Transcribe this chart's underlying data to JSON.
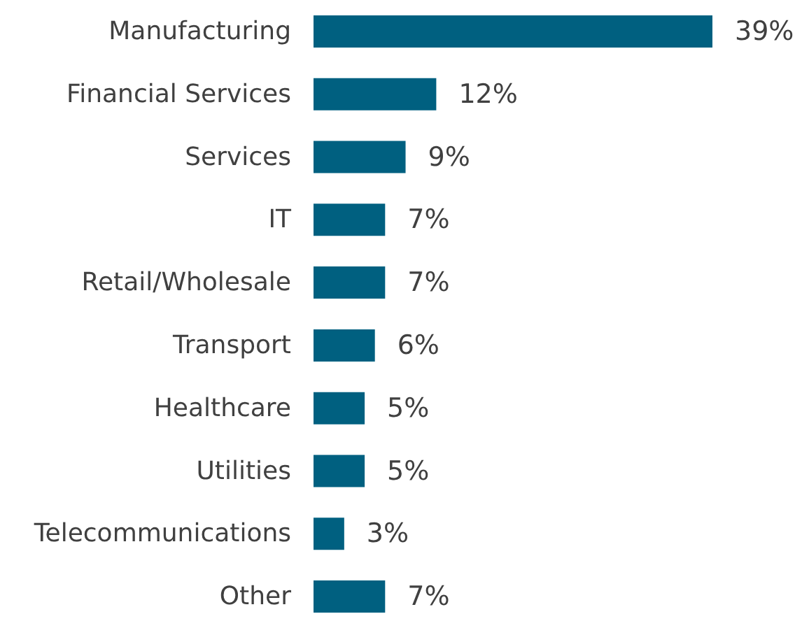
{
  "chart_data": {
    "type": "bar",
    "orientation": "horizontal",
    "categories": [
      "Manufacturing",
      "Financial Services",
      "Services",
      "IT",
      "Retail/Wholesale",
      "Transport",
      "Healthcare",
      "Utilities",
      "Telecommunications",
      "Other"
    ],
    "values": [
      39,
      12,
      9,
      7,
      7,
      6,
      5,
      5,
      3,
      7
    ],
    "value_labels": [
      "39%",
      "12%",
      "9%",
      "7%",
      "7%",
      "6%",
      "5%",
      "5%",
      "3%",
      "7%"
    ],
    "color": "#006080"
  }
}
